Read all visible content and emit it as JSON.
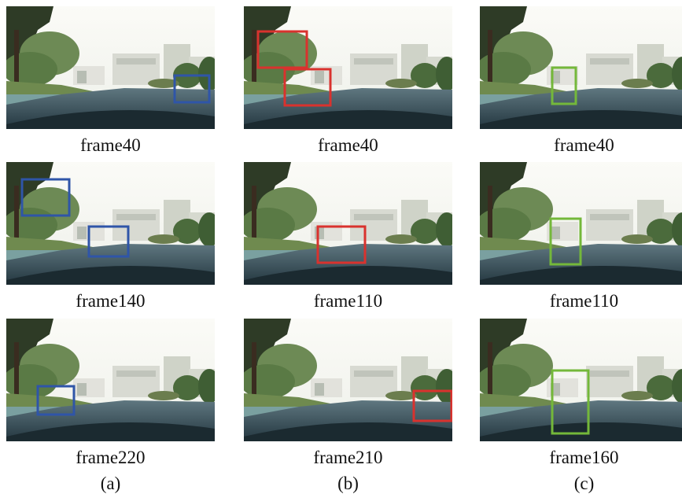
{
  "figure": {
    "columns": [
      {
        "label": "(a)",
        "frames": [
          {
            "caption": "frame40",
            "box_color": "#2f55a8"
          },
          {
            "caption": "frame140",
            "box_color": "#2f55a8"
          },
          {
            "caption": "frame220",
            "box_color": "#2f55a8"
          }
        ]
      },
      {
        "label": "(b)",
        "frames": [
          {
            "caption": "frame40",
            "box_color": "#d9322e"
          },
          {
            "caption": "frame110",
            "box_color": "#d9322e"
          },
          {
            "caption": "frame210",
            "box_color": "#d9322e"
          }
        ]
      },
      {
        "label": "(c)",
        "frames": [
          {
            "caption": "frame40",
            "box_color": "#74b83a"
          },
          {
            "caption": "frame110",
            "box_color": "#74b83a"
          },
          {
            "caption": "frame160",
            "box_color": "#74b83a"
          }
        ]
      }
    ]
  }
}
